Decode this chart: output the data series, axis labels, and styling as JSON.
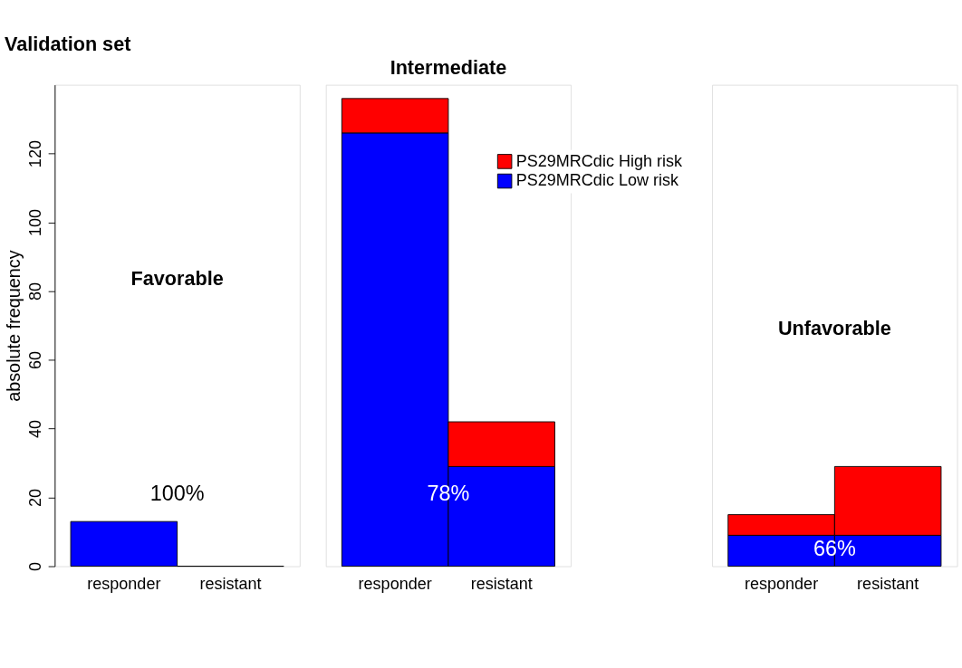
{
  "chart_data": [
    {
      "type": "bar",
      "title": "Favorable",
      "ylabel": "absolute frequency",
      "categories": [
        "responder",
        "resistant"
      ],
      "stacked": true,
      "series": [
        {
          "color": "#0000ff",
          "values": [
            13,
            0
          ]
        },
        {
          "color": "#ff0000",
          "values": [
            null,
            null
          ]
        }
      ],
      "ylim": [
        0,
        140
      ],
      "yticks": [
        0,
        20,
        40,
        60,
        80,
        100,
        120
      ],
      "annotations": [
        "Validation set",
        "100%"
      ]
    },
    {
      "type": "bar",
      "title": "Intermediate",
      "categories": [
        "responder",
        "resistant"
      ],
      "stacked": true,
      "series": [
        {
          "name": "PS29MRCdic Low risk",
          "color": "#0000ff",
          "values": [
            126,
            29
          ]
        },
        {
          "name": "PS29MRCdic High risk",
          "color": "#ff0000",
          "values": [
            10,
            13
          ]
        }
      ],
      "ylim": [
        0,
        140
      ],
      "tick_labels": "x",
      "annotations": [
        "78%"
      ],
      "legend": "top right"
    },
    {
      "type": "bar",
      "title": "Unfavorable",
      "categories": [
        "responder",
        "resistant"
      ],
      "stacked": true,
      "series": [
        {
          "color": "#0000ff",
          "values": [
            9,
            9
          ]
        },
        {
          "color": "#ff0000",
          "values": [
            6,
            20
          ]
        }
      ],
      "ylim": [
        0,
        140
      ],
      "tick_labels": "x",
      "annotations": [
        "66%"
      ]
    }
  ]
}
